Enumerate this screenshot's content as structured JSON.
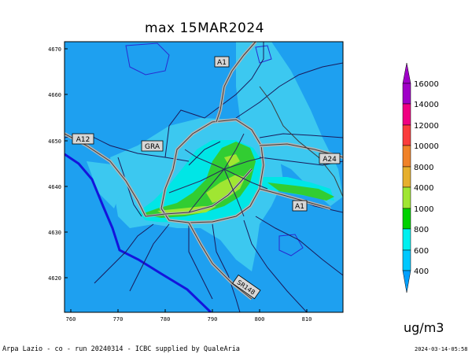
{
  "title": "max 15MAR2024",
  "unit": "ug/m3",
  "footer": {
    "left": "Arpa Lazio - co - run 20240314 - ICBC supplied by QualeAria",
    "right": "2024-03-14-05:58"
  },
  "axes": {
    "x_ticks": [
      "760",
      "770",
      "780",
      "790",
      "800",
      "810"
    ],
    "y_ticks": [
      "4670",
      "4660",
      "4650",
      "4640",
      "4630",
      "4620"
    ]
  },
  "road_labels": [
    "A1",
    "A12",
    "GRA",
    "A24",
    "A1",
    "SR148"
  ],
  "legend": {
    "levels": [
      "400",
      "600",
      "800",
      "1000",
      "4000",
      "8000",
      "10000",
      "12000",
      "14000",
      "16000"
    ],
    "colors": [
      "#00a0ff",
      "#00c8ff",
      "#00f0f0",
      "#00d200",
      "#a0e632",
      "#e6af2d",
      "#f08228",
      "#fa3c3c",
      "#f00082",
      "#a000c8"
    ]
  },
  "field_colors": {
    "base": "#1ea0f0",
    "light": "#3cc8f0",
    "cyan": "#00e6e6",
    "green": "#32cd32",
    "yellowgreen": "#a0e632",
    "sea": "#1e6eff",
    "coast": "#1414dc"
  }
}
